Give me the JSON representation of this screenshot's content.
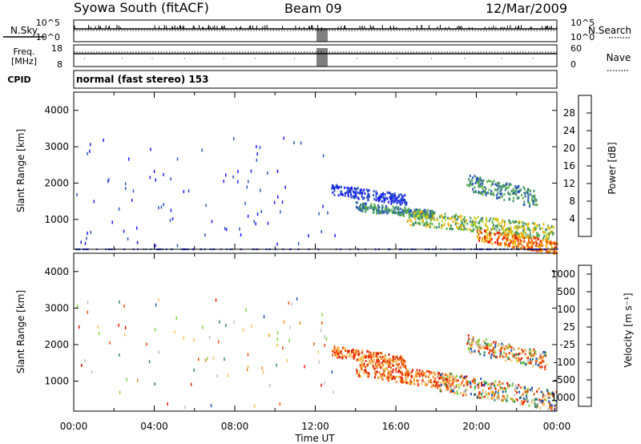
{
  "header": {
    "station": "Syowa South (fitACF)",
    "beam": "Beam 09",
    "date": "12/Mar/2009"
  },
  "status_panels": {
    "nsky_label": "N.Sky",
    "nsearch_label": "N.Search",
    "freq_label_1": "Freq.",
    "freq_label_2": "[MHz]",
    "nave_label": "Nave",
    "cpid_label": "CPID",
    "cpid_value": "normal (fast stereo) 153",
    "noise_left_ticks": [
      "10^5",
      "10^0"
    ],
    "noise_right_ticks": [
      "10^5",
      "10^0"
    ],
    "freq_left_ticks": [
      "18",
      "8"
    ],
    "freq_right_ticks": [
      "60",
      "0"
    ]
  },
  "colors": {
    "power_scale": [
      "#1a1aff",
      "#2a57b8",
      "#3b8a6e",
      "#59b24a",
      "#c8d62a",
      "#f0b000",
      "#f26b00",
      "#e81c00"
    ],
    "velocity_scale": [
      "#e31a00",
      "#f0500a",
      "#f38a1e",
      "#f3c35a",
      "#bdbdbd",
      "#7fd43a",
      "#2f8a5a",
      "#1f4fb0"
    ]
  },
  "chart_data": [
    {
      "type": "heatmap",
      "quantity": "power",
      "x_ticks": [
        "00:00",
        "04:00",
        "08:00",
        "12:00",
        "16:00",
        "20:00",
        "00:00"
      ],
      "xlabel": "Time UT",
      "ylabel": "Slant Range [km]",
      "y_ticks": [
        "1000",
        "2000",
        "3000",
        "4000"
      ],
      "xlim_hours": [
        0,
        24
      ],
      "ylim_km": [
        180,
        4500
      ],
      "colorbar_label": "Power [dB]",
      "colorbar_ticks": [
        "4",
        "8",
        "12",
        "16",
        "20",
        "24",
        "28"
      ],
      "colorbar_range": [
        0,
        32
      ],
      "echo_regions": [
        {
          "t_start": 12.8,
          "t_end": 16.5,
          "r_start": 1500,
          "r_end": 2000,
          "level": "low"
        },
        {
          "t_start": 14.0,
          "t_end": 18.0,
          "r_start": 1100,
          "r_end": 1500,
          "level": "mid"
        },
        {
          "t_start": 16.5,
          "t_end": 23.8,
          "r_start": 600,
          "r_end": 1300,
          "level": "mid-high"
        },
        {
          "t_start": 20.0,
          "t_end": 24.0,
          "r_start": 180,
          "r_end": 800,
          "level": "high"
        },
        {
          "t_start": 19.5,
          "t_end": 23.0,
          "r_start": 1500,
          "r_end": 2300,
          "level": "mid"
        }
      ]
    },
    {
      "type": "heatmap",
      "quantity": "velocity",
      "x_ticks": [
        "00:00",
        "04:00",
        "08:00",
        "12:00",
        "16:00",
        "20:00",
        "00:00"
      ],
      "xlabel": "Time UT",
      "ylabel": "Slant Range [km]",
      "y_ticks": [
        "1000",
        "2000",
        "3000",
        "4000"
      ],
      "xlim_hours": [
        0,
        24
      ],
      "ylim_km": [
        180,
        4500
      ],
      "colorbar_label": "Velocity [m s⁻¹]",
      "colorbar_ticks": [
        "1000",
        "500",
        "100",
        "25",
        "-25",
        "-100",
        "-500",
        "-1000"
      ],
      "echo_regions": [
        {
          "t_start": 12.8,
          "t_end": 16.5,
          "r_start": 1500,
          "r_end": 2000,
          "velocity": "negative"
        },
        {
          "t_start": 14.0,
          "t_end": 19.0,
          "r_start": 900,
          "r_end": 1600,
          "velocity": "negative"
        },
        {
          "t_start": 18.0,
          "t_end": 24.0,
          "r_start": 400,
          "r_end": 1300,
          "velocity": "mixed"
        },
        {
          "t_start": 19.5,
          "t_end": 23.5,
          "r_start": 1500,
          "r_end": 2300,
          "velocity": "mixed"
        }
      ]
    }
  ]
}
